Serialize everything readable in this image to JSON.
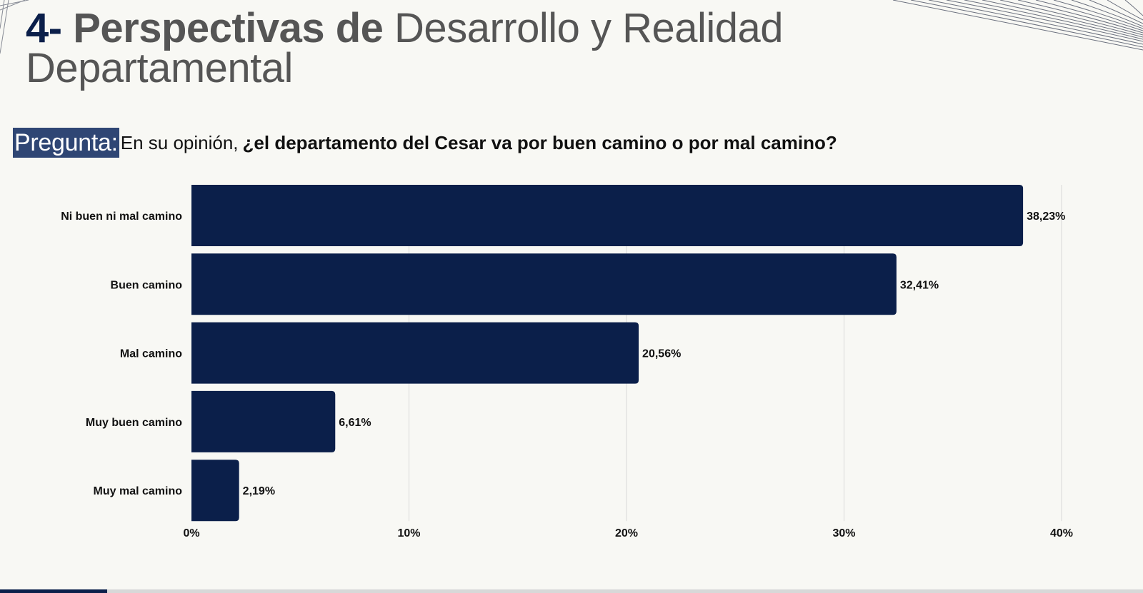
{
  "header": {
    "title_number": "4-",
    "title_bold": "Perspectivas de",
    "title_rest_line1": "Desarrollo y Realidad",
    "title_line2": "Departamental"
  },
  "question": {
    "tag": "Pregunta:",
    "plain": "En su opinión,",
    "bold": "¿el departamento del Cesar va por buen camino o por mal camino?"
  },
  "colors": {
    "bar": "#0b1f4a",
    "tag_bg": "#2f4674",
    "title_accent": "#0b1f4a",
    "title_text": "#555555",
    "grid": "#d9d9d9"
  },
  "chart_data": {
    "type": "bar",
    "orientation": "horizontal",
    "title": "En su opinión, ¿el departamento del Cesar va por buen camino o por mal camino?",
    "categories": [
      "Ni buen ni mal camino",
      "Buen camino",
      "Mal camino",
      "Muy buen camino",
      "Muy mal camino"
    ],
    "values": [
      38.23,
      32.41,
      20.56,
      6.61,
      2.19
    ],
    "value_labels": [
      "38,23%",
      "32,41%",
      "20,56%",
      "6,61%",
      "2,19%"
    ],
    "xlabel": "",
    "ylabel": "",
    "xlim": [
      0,
      40
    ],
    "xticks": [
      0,
      10,
      20,
      30,
      40
    ],
    "xtick_labels": [
      "0%",
      "10%",
      "20%",
      "30%",
      "40%"
    ],
    "grid": "vertical",
    "legend": "none"
  }
}
